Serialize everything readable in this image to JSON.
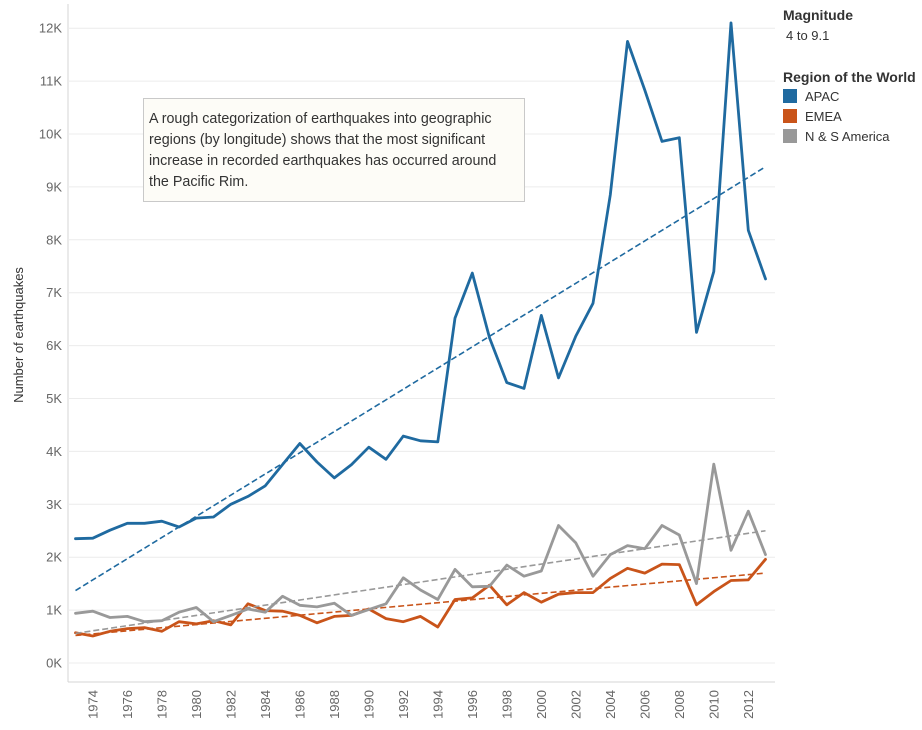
{
  "chart_data": {
    "type": "line",
    "title": "",
    "xlabel": "",
    "ylabel": "Number of earthquakes",
    "ylim": [
      0,
      12000
    ],
    "xlim": [
      1973,
      2013
    ],
    "y_ticks": [
      0,
      1000,
      2000,
      3000,
      4000,
      5000,
      6000,
      7000,
      8000,
      9000,
      10000,
      11000,
      12000
    ],
    "y_tick_labels": [
      "0K",
      "1K",
      "2K",
      "3K",
      "4K",
      "5K",
      "6K",
      "7K",
      "8K",
      "9K",
      "10K",
      "11K",
      "12K"
    ],
    "x_ticks": [
      1974,
      1976,
      1978,
      1980,
      1982,
      1984,
      1986,
      1988,
      1990,
      1992,
      1994,
      1996,
      1998,
      2000,
      2002,
      2004,
      2006,
      2008,
      2010,
      2012
    ],
    "x": [
      1973,
      1974,
      1975,
      1976,
      1977,
      1978,
      1979,
      1980,
      1981,
      1982,
      1983,
      1984,
      1985,
      1986,
      1987,
      1988,
      1989,
      1990,
      1991,
      1992,
      1993,
      1994,
      1995,
      1996,
      1997,
      1998,
      1999,
      2000,
      2001,
      2002,
      2003,
      2004,
      2005,
      2006,
      2007,
      2008,
      2009,
      2010,
      2011,
      2012,
      2013
    ],
    "series": [
      {
        "name": "APAC",
        "color": "#1f6aa0",
        "values": [
          2350,
          2360,
          2510,
          2640,
          2640,
          2680,
          2570,
          2740,
          2760,
          3000,
          3150,
          3350,
          3750,
          4150,
          3800,
          3500,
          3750,
          4080,
          3850,
          4290,
          4200,
          4180,
          6520,
          7370,
          6150,
          5300,
          5190,
          6570,
          5390,
          6180,
          6800,
          8850,
          11750,
          10830,
          9860,
          9930,
          6250,
          7400,
          12100,
          8180,
          7260
        ],
        "trend": [
          1370,
          9380
        ]
      },
      {
        "name": "EMEA",
        "color": "#c9541a",
        "values": [
          570,
          510,
          600,
          650,
          670,
          600,
          780,
          740,
          800,
          720,
          1120,
          990,
          980,
          900,
          760,
          880,
          900,
          1020,
          840,
          780,
          880,
          680,
          1200,
          1230,
          1470,
          1100,
          1330,
          1150,
          1300,
          1330,
          1330,
          1600,
          1790,
          1700,
          1870,
          1860,
          1100,
          1350,
          1560,
          1570,
          1960
        ],
        "trend": [
          520,
          1700
        ]
      },
      {
        "name": "N & S America",
        "color": "#999999",
        "values": [
          940,
          980,
          860,
          880,
          780,
          800,
          960,
          1050,
          780,
          900,
          1020,
          960,
          1260,
          1090,
          1060,
          1130,
          900,
          1010,
          1120,
          1610,
          1380,
          1200,
          1770,
          1440,
          1450,
          1850,
          1640,
          1740,
          2600,
          2270,
          1640,
          2050,
          2220,
          2160,
          2600,
          2420,
          1500,
          3760,
          2130,
          2870,
          2050
        ],
        "trend": [
          560,
          2500
        ]
      }
    ]
  },
  "legend": {
    "magnitude_title": "Magnitude",
    "magnitude_value": "4 to 9.1",
    "region_title": "Region of the World",
    "items": [
      {
        "label": "APAC",
        "color": "#1f6aa0"
      },
      {
        "label": "EMEA",
        "color": "#c9541a"
      },
      {
        "label": "N & S America",
        "color": "#999999"
      }
    ]
  },
  "annotation": "A rough categorization of earthquakes into geographic regions (by longitude) shows that the most significant increase in recorded earthquakes has occurred around the Pacific Rim."
}
